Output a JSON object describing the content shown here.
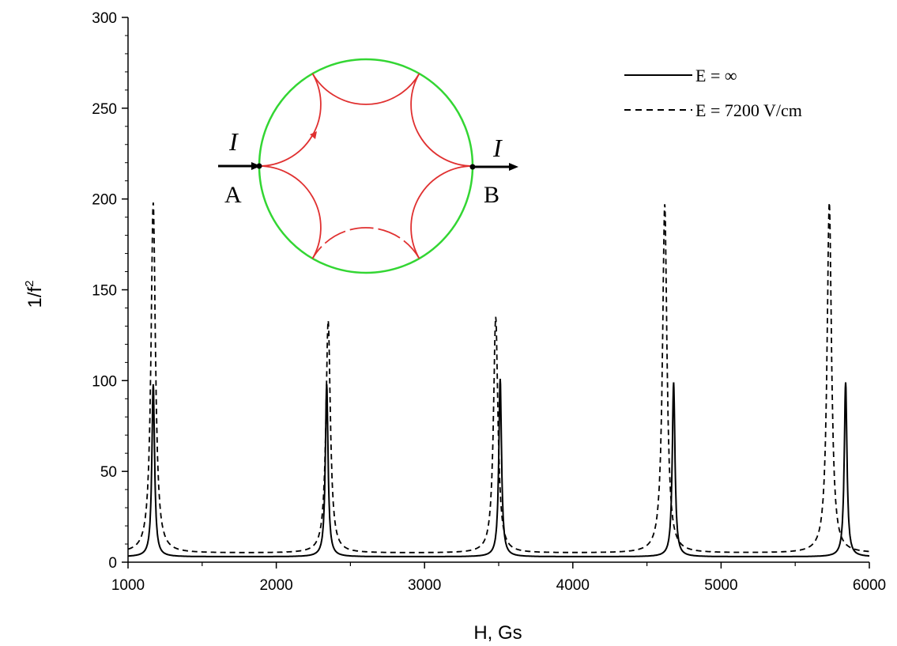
{
  "chart_data": {
    "type": "line",
    "xlabel": "H, Gs",
    "ylabel": "1/f",
    "ylabel_exponent": "2",
    "xlim": [
      1000,
      6000
    ],
    "ylim": [
      0,
      300
    ],
    "xticks": [
      1000,
      2000,
      3000,
      4000,
      5000,
      6000
    ],
    "yticks": [
      0,
      50,
      100,
      150,
      200,
      250,
      300
    ],
    "grid": false,
    "legend_position": "top-right",
    "series": [
      {
        "name": "E = ∞",
        "style": "solid",
        "color": "#000000",
        "peaks": [
          {
            "x": 1170,
            "y": 98
          },
          {
            "x": 2340,
            "y": 98
          },
          {
            "x": 3510,
            "y": 101
          },
          {
            "x": 4680,
            "y": 99
          },
          {
            "x": 5840,
            "y": 99
          }
        ],
        "baseline": 3
      },
      {
        "name": "E = 7200 V/cm",
        "style": "dashed",
        "color": "#000000",
        "peaks": [
          {
            "x": 1170,
            "y": 198
          },
          {
            "x": 2350,
            "y": 133
          },
          {
            "x": 3480,
            "y": 135
          },
          {
            "x": 4620,
            "y": 197
          },
          {
            "x": 5730,
            "y": 198
          }
        ],
        "baseline": 5
      }
    ],
    "inset": {
      "description_labels": {
        "current": "I",
        "left_point": "A",
        "right_point": "B"
      },
      "circle_color": "#33d633",
      "arc_color": "#e03030"
    }
  }
}
